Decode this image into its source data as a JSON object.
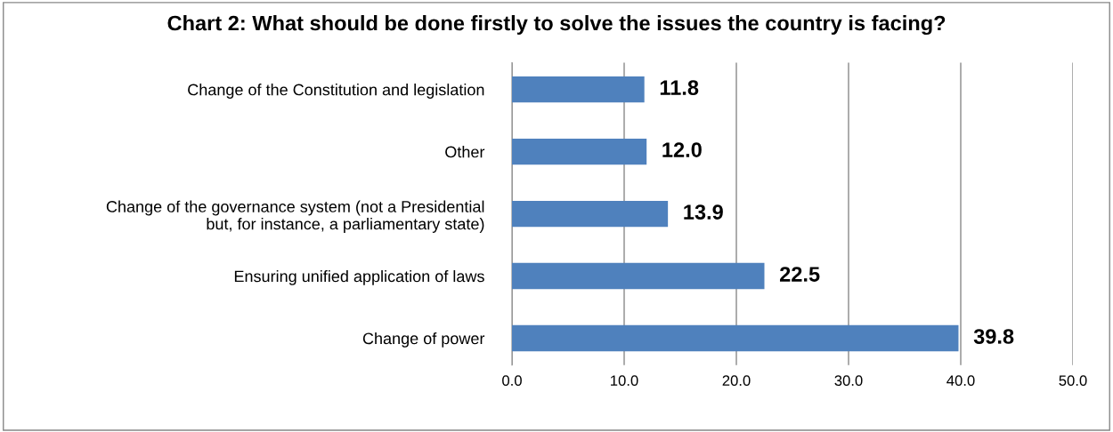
{
  "chart_data": {
    "type": "bar",
    "orientation": "horizontal",
    "title": "Chart 2: What should be done firstly to solve the issues the country is facing?",
    "categories": [
      "Change of the Constitution and legislation",
      "Other",
      "Change of the governance system (not a Presidential\nbut, for instance, a parliamentary state)",
      "Ensuring unified application of laws",
      "Change of power"
    ],
    "values": [
      11.8,
      12.0,
      13.9,
      22.5,
      39.8
    ],
    "value_labels": [
      "11.8",
      "12.0",
      "13.9",
      "22.5",
      "39.8"
    ],
    "color": "#4f81bd",
    "xlim": [
      0,
      50
    ],
    "xticks": [
      {
        "value": 0,
        "label": "0.0"
      },
      {
        "value": 10,
        "label": "10.0"
      },
      {
        "value": 20,
        "label": "20.0"
      },
      {
        "value": 30,
        "label": "30.0"
      },
      {
        "value": 40,
        "label": "40.0"
      },
      {
        "value": 50,
        "label": "50.0"
      }
    ],
    "grid": "x",
    "legend": false
  }
}
